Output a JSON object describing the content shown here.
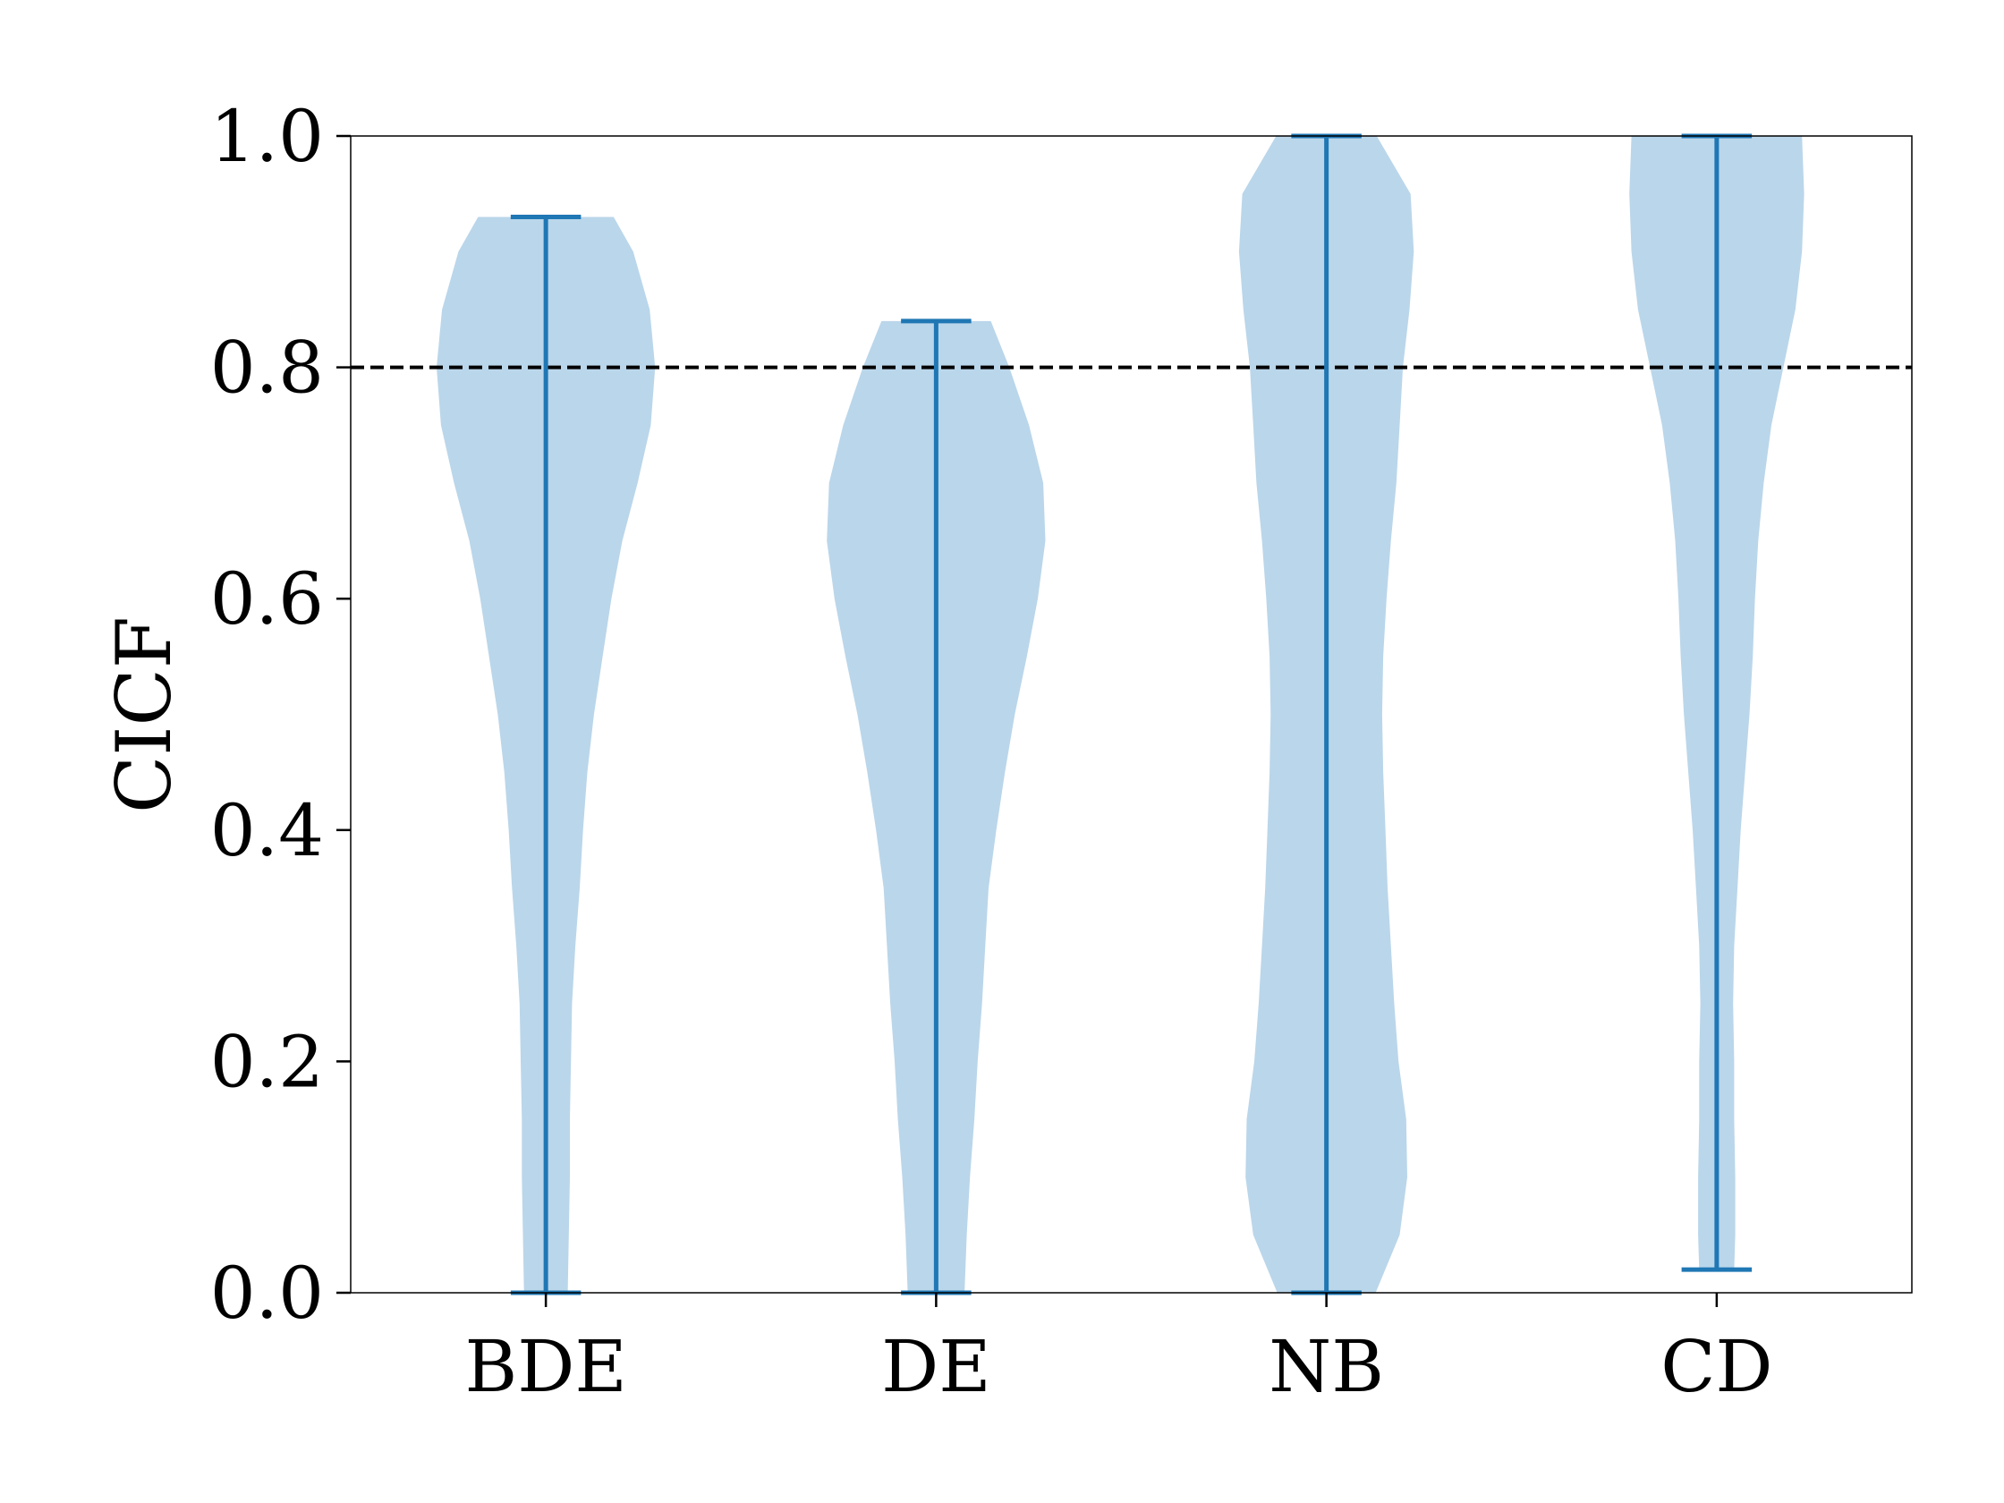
{
  "chart_data": {
    "type": "violin",
    "title": "",
    "xlabel": "",
    "ylabel": "CICF",
    "ylim": [
      0.0,
      1.0
    ],
    "yticks": [
      "0.0",
      "0.2",
      "0.4",
      "0.6",
      "0.8",
      "1.0"
    ],
    "categories": [
      "BDE",
      "DE",
      "NB",
      "CD"
    ],
    "reference_line": {
      "y": 0.8,
      "style": "dashed",
      "color": "#000000"
    },
    "grid": false,
    "colors": {
      "body": "#bad6ea",
      "lines": "#1f77b4"
    },
    "series": [
      {
        "category": "BDE",
        "min": 0.0,
        "max": 0.93,
        "density": [
          [
            0.0,
            0.2
          ],
          [
            0.05,
            0.21
          ],
          [
            0.1,
            0.22
          ],
          [
            0.15,
            0.22
          ],
          [
            0.2,
            0.23
          ],
          [
            0.25,
            0.24
          ],
          [
            0.3,
            0.27
          ],
          [
            0.35,
            0.31
          ],
          [
            0.4,
            0.34
          ],
          [
            0.45,
            0.38
          ],
          [
            0.5,
            0.44
          ],
          [
            0.55,
            0.52
          ],
          [
            0.6,
            0.6
          ],
          [
            0.65,
            0.7
          ],
          [
            0.7,
            0.84
          ],
          [
            0.75,
            0.96
          ],
          [
            0.8,
            1.0
          ],
          [
            0.85,
            0.95
          ],
          [
            0.9,
            0.8
          ],
          [
            0.93,
            0.62
          ]
        ]
      },
      {
        "category": "DE",
        "min": 0.0,
        "max": 0.84,
        "density": [
          [
            0.0,
            0.26
          ],
          [
            0.05,
            0.28
          ],
          [
            0.1,
            0.31
          ],
          [
            0.15,
            0.35
          ],
          [
            0.2,
            0.38
          ],
          [
            0.25,
            0.42
          ],
          [
            0.3,
            0.45
          ],
          [
            0.35,
            0.48
          ],
          [
            0.4,
            0.55
          ],
          [
            0.45,
            0.63
          ],
          [
            0.5,
            0.72
          ],
          [
            0.55,
            0.83
          ],
          [
            0.6,
            0.93
          ],
          [
            0.65,
            1.0
          ],
          [
            0.7,
            0.98
          ],
          [
            0.75,
            0.85
          ],
          [
            0.8,
            0.67
          ],
          [
            0.84,
            0.5
          ]
        ]
      },
      {
        "category": "NB",
        "min": 0.0,
        "max": 1.0,
        "density": [
          [
            0.0,
            0.45
          ],
          [
            0.05,
            0.67
          ],
          [
            0.1,
            0.74
          ],
          [
            0.15,
            0.73
          ],
          [
            0.2,
            0.66
          ],
          [
            0.25,
            0.62
          ],
          [
            0.3,
            0.59
          ],
          [
            0.35,
            0.56
          ],
          [
            0.4,
            0.54
          ],
          [
            0.45,
            0.52
          ],
          [
            0.5,
            0.51
          ],
          [
            0.55,
            0.52
          ],
          [
            0.6,
            0.55
          ],
          [
            0.65,
            0.59
          ],
          [
            0.7,
            0.64
          ],
          [
            0.75,
            0.67
          ],
          [
            0.8,
            0.7
          ],
          [
            0.85,
            0.76
          ],
          [
            0.9,
            0.8
          ],
          [
            0.95,
            0.77
          ],
          [
            1.0,
            0.46
          ]
        ]
      },
      {
        "category": "CD",
        "min": 0.02,
        "max": 1.0,
        "density": [
          [
            0.02,
            0.16
          ],
          [
            0.05,
            0.17
          ],
          [
            0.1,
            0.17
          ],
          [
            0.15,
            0.16
          ],
          [
            0.2,
            0.16
          ],
          [
            0.25,
            0.15
          ],
          [
            0.3,
            0.16
          ],
          [
            0.35,
            0.19
          ],
          [
            0.4,
            0.22
          ],
          [
            0.45,
            0.26
          ],
          [
            0.5,
            0.3
          ],
          [
            0.55,
            0.33
          ],
          [
            0.6,
            0.35
          ],
          [
            0.65,
            0.38
          ],
          [
            0.7,
            0.43
          ],
          [
            0.75,
            0.5
          ],
          [
            0.8,
            0.61
          ],
          [
            0.85,
            0.72
          ],
          [
            0.9,
            0.78
          ],
          [
            0.95,
            0.8
          ],
          [
            1.0,
            0.78
          ]
        ]
      }
    ]
  }
}
